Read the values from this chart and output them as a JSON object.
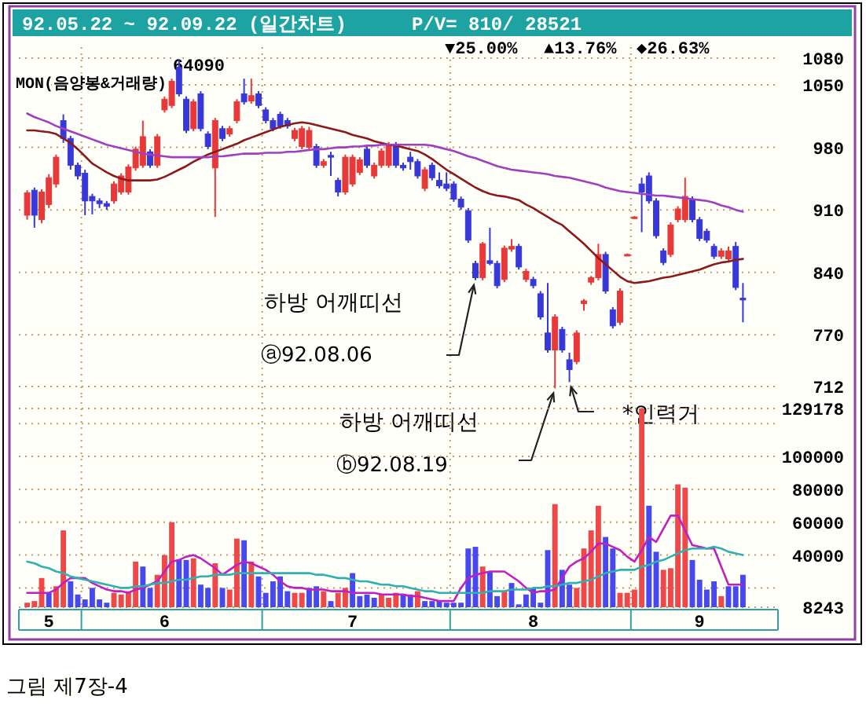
{
  "chart_data": [
    {
      "type": "candlestick",
      "title": "92.05.22 ~ 92.09.22 (일간차트)",
      "subtitle": "P/V=  810/  28521",
      "annotations": [
        "▼25.00%",
        "▲13.76%",
        "◆26.63%",
        "64090",
        "MON(음양봉&거래량)",
        "하방 어깨띠선",
        "ⓐ92.08.06",
        "하방 어깨띠선",
        "ⓑ92.08.19",
        "*인력거"
      ],
      "categories": [
        null,
        null,
        null,
        "5",
        null,
        null,
        null,
        null,
        null,
        null,
        null,
        null,
        null,
        null,
        null,
        null,
        null,
        null,
        null,
        "6",
        null,
        null,
        null,
        null,
        null,
        null,
        null,
        null,
        null,
        null,
        null,
        null,
        null,
        null,
        null,
        null,
        null,
        null,
        null,
        null,
        null,
        null,
        null,
        null,
        null,
        "7",
        null,
        null,
        null,
        null,
        null,
        null,
        null,
        null,
        null,
        null,
        null,
        null,
        null,
        null,
        null,
        null,
        null,
        null,
        null,
        null,
        null,
        null,
        null,
        null,
        "8",
        null,
        null,
        null,
        null,
        null,
        null,
        null,
        null,
        null,
        null,
        null,
        null,
        null,
        null,
        null,
        null,
        null,
        null,
        null,
        null,
        null,
        null,
        "9",
        null,
        null,
        null,
        null,
        null,
        null
      ],
      "series": [
        {
          "ohlc": [
            [
              904,
              932,
              899,
              929
            ],
            [
              932,
              935,
              890,
              904
            ],
            [
              899,
              933,
              895,
              930
            ],
            [
              916,
              950,
              912,
              946
            ],
            [
              939,
              972,
              935,
              969
            ],
            [
              1010,
              1017,
              985,
              990
            ],
            [
              990,
              993,
              955,
              960
            ],
            [
              960,
              963,
              944,
              948
            ],
            [
              951,
              955,
              904,
              920
            ],
            [
              925,
              928,
              905,
              920
            ],
            [
              920,
              923,
              912,
              917
            ],
            [
              917,
              920,
              910,
              914
            ],
            [
              920,
              942,
              917,
              939
            ],
            [
              930,
              951,
              927,
              948
            ],
            [
              930,
              961,
              927,
              958
            ],
            [
              957,
              981,
              954,
              978
            ],
            [
              960,
              1010,
              957,
              992
            ],
            [
              975,
              978,
              957,
              960
            ],
            [
              960,
              995,
              957,
              992
            ],
            [
              1022,
              1037,
              1019,
              1034
            ],
            [
              1027,
              1057,
              1024,
              1054
            ],
            [
              1070,
              1078,
              1037,
              1040
            ],
            [
              1034,
              1037,
              996,
              999
            ],
            [
              1001,
              1034,
              998,
              1031
            ],
            [
              1040,
              1043,
              998,
              1001
            ],
            [
              995,
              998,
              978,
              981
            ],
            [
              957,
              1013,
              902,
              1010
            ],
            [
              1001,
              1004,
              987,
              990
            ],
            [
              995,
              1004,
              992,
              1001
            ],
            [
              1010,
              1034,
              1007,
              1031
            ],
            [
              1040,
              1057,
              1028,
              1031
            ],
            [
              1032,
              1057,
              1029,
              1038
            ],
            [
              1040,
              1043,
              1024,
              1027
            ],
            [
              1022,
              1025,
              1007,
              1010
            ],
            [
              1010,
              1013,
              998,
              1001
            ],
            [
              1017,
              1020,
              1001,
              1004
            ],
            [
              1010,
              1013,
              1001,
              1004
            ],
            [
              990,
              1002,
              987,
              999
            ],
            [
              981,
              1004,
              978,
              1001
            ],
            [
              980,
              1003,
              976,
              999
            ],
            [
              981,
              984,
              957,
              960
            ],
            [
              960,
              967,
              957,
              964
            ],
            [
              971,
              975,
              948,
              969
            ],
            [
              943,
              946,
              925,
              930
            ],
            [
              930,
              972,
              927,
              969
            ],
            [
              939,
              972,
              936,
              969
            ],
            [
              952,
              969,
              949,
              966
            ],
            [
              978,
              981,
              957,
              960
            ],
            [
              948,
              963,
              945,
              960
            ],
            [
              960,
              979,
              957,
              976
            ],
            [
              960,
              986,
              957,
              983
            ],
            [
              983,
              986,
              957,
              960
            ],
            [
              960,
              963,
              954,
              957
            ],
            [
              969,
              975,
              955,
              964
            ],
            [
              964,
              967,
              945,
              948
            ],
            [
              934,
              958,
              931,
              955
            ],
            [
              960,
              963,
              943,
              946
            ],
            [
              943,
              952,
              934,
              937
            ],
            [
              939,
              952,
              931,
              934
            ],
            [
              939,
              942,
              919,
              922
            ],
            [
              922,
              925,
              910,
              913
            ],
            [
              909,
              912,
              873,
              876
            ],
            [
              850,
              853,
              831,
              834
            ],
            [
              834,
              874,
              831,
              872
            ],
            [
              853,
              890,
              848,
              850
            ],
            [
              850,
              853,
              822,
              825
            ],
            [
              832,
              870,
              829,
              867
            ],
            [
              866,
              877,
              863,
              869
            ],
            [
              869,
              872,
              843,
              846
            ],
            [
              832,
              844,
              829,
              841
            ],
            [
              832,
              835,
              822,
              825
            ],
            [
              816,
              819,
              787,
              790
            ],
            [
              772,
              828,
              750,
              753
            ],
            [
              753,
              793,
              710,
              790
            ],
            [
              776,
              779,
              750,
              753
            ],
            [
              742,
              750,
              717,
              731
            ],
            [
              740,
              775,
              737,
              772
            ],
            [
              805,
              810,
              797,
              808
            ],
            [
              829,
              836,
              826,
              834
            ],
            [
              834,
              872,
              831,
              860
            ],
            [
              860,
              863,
              816,
              819
            ],
            [
              798,
              801,
              777,
              780
            ],
            [
              784,
              822,
              781,
              819
            ],
            [
              859,
              861,
              858,
              860
            ],
            [
              901,
              903,
              900,
              902
            ],
            [
              939,
              946,
              885,
              930
            ],
            [
              948,
              952,
              917,
              920
            ],
            [
              920,
              923,
              878,
              881
            ],
            [
              864,
              867,
              848,
              851
            ],
            [
              860,
              896,
              857,
              893
            ],
            [
              899,
              914,
              896,
              911
            ],
            [
              899,
              946,
              896,
              925
            ],
            [
              922,
              925,
              896,
              899
            ],
            [
              899,
              902,
              875,
              878
            ],
            [
              886,
              889,
              873,
              876
            ],
            [
              869,
              872,
              855,
              858
            ],
            [
              858,
              867,
              855,
              864
            ],
            [
              855,
              869,
              852,
              864
            ],
            [
              869,
              874,
              820,
              823
            ],
            [
              811,
              828,
              784,
              809
            ]
          ],
          "colors": [
            "#e83838",
            "#3838d8",
            "#e83838",
            "#e83838",
            "#e83838",
            "#3838d8",
            "#3838d8",
            "#3838d8",
            "#3838d8",
            "#3838d8",
            "#3838d8",
            "#3838d8",
            "#e83838",
            "#e83838",
            "#e83838",
            "#e83838",
            "#e83838",
            "#3838d8",
            "#e83838",
            "#e83838",
            "#e83838",
            "#3838d8",
            "#3838d8",
            "#e83838",
            "#3838d8",
            "#3838d8",
            "#e83838",
            "#3838d8",
            "#e83838",
            "#e83838",
            "#3838d8",
            "#e83838",
            "#3838d8",
            "#3838d8",
            "#3838d8",
            "#3838d8",
            "#3838d8",
            "#e83838",
            "#e83838",
            "#e83838",
            "#3838d8",
            "#e83838",
            "#3838d8",
            "#3838d8",
            "#e83838",
            "#e83838",
            "#e83838",
            "#3838d8",
            "#e83838",
            "#e83838",
            "#e83838",
            "#3838d8",
            "#3838d8",
            "#3838d8",
            "#3838d8",
            "#e83838",
            "#3838d8",
            "#3838d8",
            "#3838d8",
            "#3838d8",
            "#3838d8",
            "#3838d8",
            "#3838d8",
            "#e83838",
            "#3838d8",
            "#3838d8",
            "#e83838",
            "#e83838",
            "#3838d8",
            "#e83838",
            "#3838d8",
            "#3838d8",
            "#3838d8",
            "#e83838",
            "#3838d8",
            "#3838d8",
            "#e83838",
            "#e83838",
            "#e83838",
            "#e83838",
            "#3838d8",
            "#3838d8",
            "#e83838",
            "#e83838",
            "#e83838",
            "#3838d8",
            "#3838d8",
            "#3838d8",
            "#3838d8",
            "#e83838",
            "#e83838",
            "#e83838",
            "#3838d8",
            "#3838d8",
            "#3838d8",
            "#3838d8",
            "#e83838",
            "#e83838",
            "#3838d8",
            "#3838d8"
          ]
        },
        {
          "type": "line",
          "color": "#8b1a1a",
          "values": [
            999,
            999,
            998,
            997,
            995,
            990,
            985,
            978,
            970,
            962,
            957,
            952,
            948,
            945,
            943,
            943,
            943,
            943,
            944,
            947,
            951,
            955,
            959,
            964,
            968,
            972,
            975,
            978,
            981,
            984,
            988,
            991,
            994,
            997,
            1000,
            1003,
            1005,
            1007,
            1008,
            1007,
            1005,
            1003,
            1001,
            999,
            997,
            994,
            992,
            990,
            987,
            985,
            983,
            982,
            980,
            978,
            976,
            972,
            967,
            961,
            955,
            950,
            945,
            940,
            935,
            931,
            928,
            926,
            925,
            923,
            921,
            916,
            912,
            907,
            902,
            897,
            893,
            886,
            879,
            872,
            864,
            856,
            849,
            842,
            835,
            830,
            828,
            829,
            830,
            832,
            834,
            835,
            837,
            839,
            841,
            843,
            846,
            849,
            851,
            852,
            854,
            855
          ]
        },
        {
          "type": "line",
          "color": "#a040c0",
          "values": [
            1018,
            1014,
            1011,
            1008,
            1004,
            1001,
            998,
            995,
            992,
            989,
            986,
            983,
            981,
            979,
            977,
            975,
            973,
            972,
            971,
            970,
            969,
            969,
            969,
            969,
            969,
            969,
            970,
            970,
            971,
            972,
            973,
            973,
            973,
            974,
            974,
            974,
            975,
            975,
            976,
            977,
            978,
            978,
            979,
            980,
            980,
            981,
            981,
            982,
            982,
            983,
            983,
            983,
            983,
            983,
            983,
            983,
            982,
            980,
            978,
            976,
            973,
            970,
            968,
            965,
            962,
            959,
            957,
            955,
            954,
            953,
            952,
            951,
            950,
            948,
            947,
            946,
            944,
            942,
            940,
            938,
            935,
            933,
            931,
            930,
            929,
            928,
            927,
            926,
            926,
            925,
            924,
            923,
            922,
            921,
            920,
            918,
            915,
            913,
            910,
            908
          ]
        }
      ],
      "ylim": [
        702,
        1092
      ],
      "yticks": [
        712,
        770,
        840,
        910,
        980,
        1050,
        1080
      ],
      "grid": true,
      "tick_labels": "y"
    },
    {
      "type": "bar",
      "annotations": [
        "그림 제7장-4"
      ],
      "categories": [
        null,
        null,
        null,
        "5",
        null,
        null,
        null,
        null,
        null,
        null,
        null,
        null,
        null,
        null,
        null,
        null,
        null,
        null,
        null,
        "6",
        null,
        null,
        null,
        null,
        null,
        null,
        null,
        null,
        null,
        null,
        null,
        null,
        null,
        null,
        null,
        null,
        null,
        null,
        null,
        null,
        null,
        null,
        null,
        null,
        null,
        "7",
        null,
        null,
        null,
        null,
        null,
        null,
        null,
        null,
        null,
        null,
        null,
        null,
        null,
        null,
        null,
        null,
        null,
        null,
        null,
        null,
        null,
        null,
        null,
        null,
        "8",
        null,
        null,
        null,
        null,
        null,
        null,
        null,
        null,
        null,
        null,
        null,
        null,
        null,
        null,
        null,
        null,
        null,
        null,
        null,
        null,
        null,
        null,
        "9",
        null,
        null,
        null,
        null,
        null,
        null
      ],
      "series": [
        {
          "values": [
            11000,
            12000,
            26000,
            17000,
            21000,
            55000,
            24000,
            16000,
            13000,
            20000,
            13000,
            11000,
            17000,
            16000,
            18000,
            36000,
            33000,
            20000,
            28000,
            40000,
            60000,
            37000,
            37000,
            38000,
            22000,
            20000,
            35000,
            20000,
            19000,
            50000,
            49000,
            36000,
            27000,
            17000,
            24000,
            27000,
            18000,
            17000,
            17000,
            20000,
            21000,
            18000,
            12000,
            17000,
            20000,
            29000,
            15000,
            16000,
            14000,
            16000,
            14000,
            17000,
            16000,
            16000,
            18000,
            12000,
            12000,
            12000,
            11000,
            11000,
            11000,
            44000,
            45000,
            33000,
            30000,
            15000,
            18000,
            23000,
            10000,
            16000,
            20000,
            11000,
            43000,
            71000,
            31000,
            22000,
            20000,
            44000,
            55000,
            70000,
            51000,
            44000,
            17000,
            17000,
            19000,
            129178,
            70000,
            42000,
            31000,
            32000,
            83000,
            81000,
            37000,
            25000,
            19000,
            24000,
            15000,
            21000,
            21000,
            28000
          ],
          "colors": [
            "#f04848",
            "#f04848",
            "#f04848",
            "#4848f0",
            "#f04848",
            "#f04848",
            "#4848f0",
            "#4848f0",
            "#4848f0",
            "#4848f0",
            "#4848f0",
            "#4848f0",
            "#f04848",
            "#f04848",
            "#f04848",
            "#f04848",
            "#4848f0",
            "#4848f0",
            "#f04848",
            "#f04848",
            "#f04848",
            "#4848f0",
            "#4848f0",
            "#f04848",
            "#4848f0",
            "#4848f0",
            "#f04848",
            "#4848f0",
            "#f04848",
            "#f04848",
            "#4848f0",
            "#f04848",
            "#4848f0",
            "#4848f0",
            "#4848f0",
            "#4848f0",
            "#4848f0",
            "#f04848",
            "#f04848",
            "#4848f0",
            "#4848f0",
            "#f04848",
            "#4848f0",
            "#f04848",
            "#f04848",
            "#4848f0",
            "#4848f0",
            "#4848f0",
            "#4848f0",
            "#f04848",
            "#f04848",
            "#f04848",
            "#4848f0",
            "#4848f0",
            "#f04848",
            "#4848f0",
            "#4848f0",
            "#4848f0",
            "#4848f0",
            "#4848f0",
            "#4848f0",
            "#4848f0",
            "#4848f0",
            "#f04848",
            "#4848f0",
            "#4848f0",
            "#f04848",
            "#4848f0",
            "#4848f0",
            "#4848f0",
            "#4848f0",
            "#4848f0",
            "#4848f0",
            "#f04848",
            "#4848f0",
            "#4848f0",
            "#f04848",
            "#f04848",
            "#f04848",
            "#f04848",
            "#4848f0",
            "#4848f0",
            "#f04848",
            "#f04848",
            "#f04848",
            "#f04848",
            "#4848f0",
            "#4848f0",
            "#f04848",
            "#f04848",
            "#f04848",
            "#f04848",
            "#4848f0",
            "#4848f0",
            "#4848f0",
            "#4848f0",
            "#f04848",
            "#4848f0",
            "#4848f0",
            "#4848f0"
          ]
        },
        {
          "type": "line",
          "color": "#c020c0",
          "values": [
            17000,
            17000,
            17000,
            17000,
            19000,
            23000,
            26000,
            26000,
            26000,
            23000,
            21000,
            19000,
            18000,
            18000,
            17000,
            19000,
            20000,
            22000,
            24000,
            30000,
            36000,
            37000,
            39000,
            40000,
            38000,
            35000,
            32000,
            28000,
            31000,
            34000,
            36000,
            35000,
            33000,
            31000,
            28000,
            24000,
            21000,
            20000,
            20000,
            19000,
            19000,
            19000,
            18000,
            18000,
            18000,
            17000,
            17000,
            17000,
            17000,
            16000,
            16000,
            16000,
            16000,
            15000,
            15000,
            14000,
            13000,
            12000,
            12000,
            12000,
            20000,
            26000,
            28000,
            29000,
            30000,
            30000,
            30000,
            27000,
            24000,
            20000,
            17000,
            18000,
            18000,
            19000,
            26000,
            33000,
            36000,
            38000,
            42000,
            47000,
            47000,
            45000,
            43000,
            39000,
            36000,
            43000,
            51000,
            48000,
            56000,
            64000,
            64000,
            55000,
            46000,
            45000,
            44000,
            44000,
            33000,
            22000,
            22000,
            22000
          ]
        },
        {
          "type": "line",
          "color": "#30b0b0",
          "values": [
            36000,
            35000,
            33000,
            32000,
            30000,
            29000,
            27000,
            26000,
            25000,
            24000,
            23000,
            22000,
            21000,
            20000,
            20000,
            21000,
            21000,
            22000,
            23000,
            23000,
            24000,
            25000,
            25000,
            26000,
            27000,
            27000,
            28000,
            28000,
            28000,
            29000,
            29000,
            29000,
            29000,
            29000,
            29000,
            29000,
            29000,
            29000,
            29000,
            29000,
            28000,
            28000,
            27000,
            26000,
            26000,
            25000,
            24000,
            24000,
            23000,
            22000,
            22000,
            21000,
            21000,
            20000,
            19000,
            18000,
            18000,
            17000,
            17000,
            17000,
            17000,
            17000,
            17000,
            17000,
            18000,
            18000,
            18000,
            19000,
            19000,
            19000,
            20000,
            20000,
            21000,
            21000,
            22000,
            23000,
            23000,
            24000,
            25000,
            27000,
            29000,
            30000,
            31000,
            31000,
            31000,
            33000,
            34000,
            36000,
            37000,
            39000,
            41000,
            43000,
            44000,
            44000,
            44000,
            45000,
            44000,
            42000,
            41000,
            40000
          ]
        }
      ],
      "ylim": [
        8243,
        129178
      ],
      "yticks": [
        8243,
        {
          "value": 20000,
          "label": null
        },
        40000,
        60000,
        80000,
        100000,
        {
          "value": 120000,
          "label": null
        },
        129178
      ],
      "grid": true
    }
  ]
}
